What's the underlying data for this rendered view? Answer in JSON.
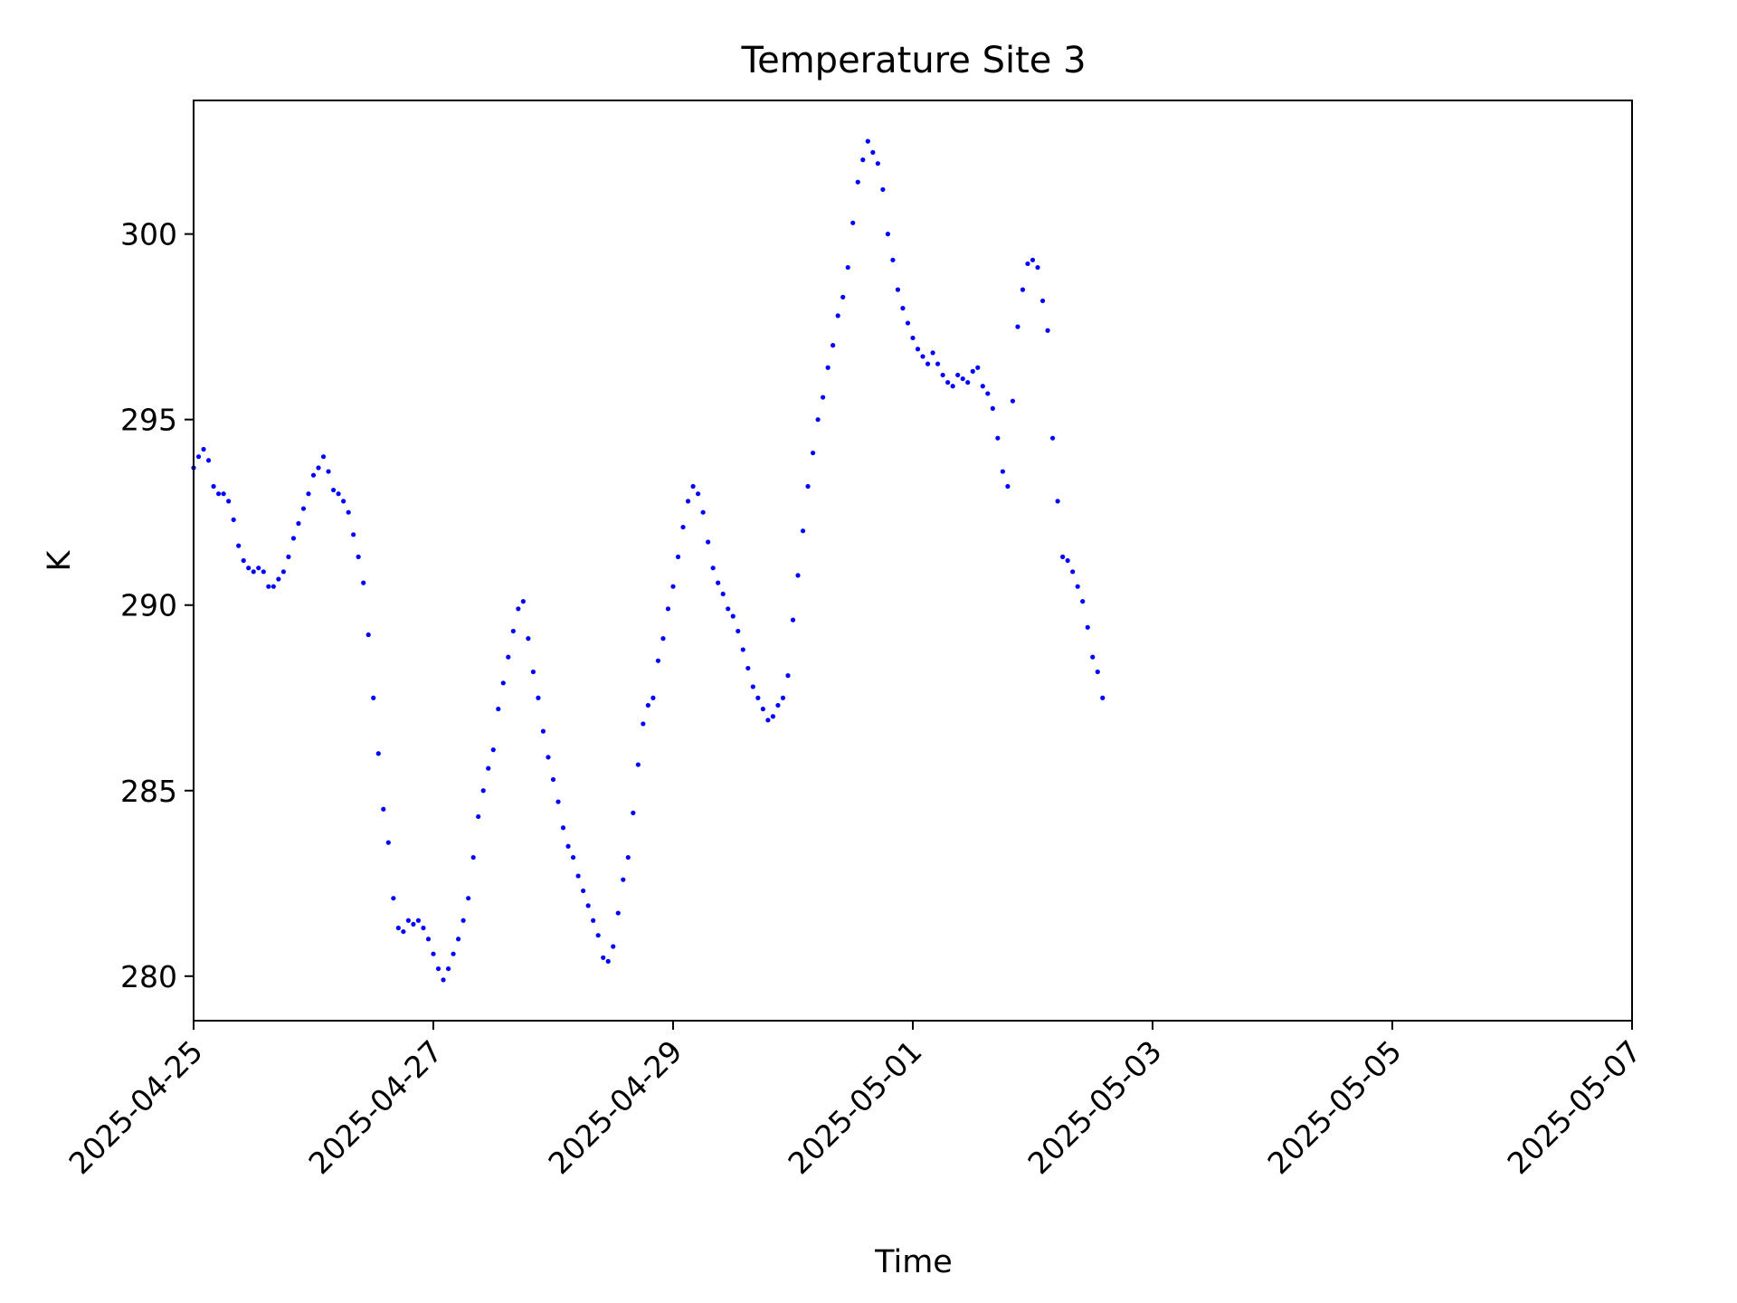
{
  "chart_data": {
    "type": "scatter",
    "title": "Temperature Site 3",
    "xlabel": "Time",
    "ylabel": "K",
    "x_ticks": [
      "2025-04-25",
      "2025-04-27",
      "2025-04-29",
      "2025-05-01",
      "2025-05-03",
      "2025-05-05",
      "2025-05-07"
    ],
    "y_ticks": [
      280,
      285,
      290,
      295,
      300
    ],
    "xlim": [
      "2025-04-25 00:00",
      "2025-05-07 00:00"
    ],
    "ylim": [
      278.8,
      303.6
    ],
    "grid": false,
    "legend": "none",
    "marker_color": "#0000ff",
    "series": [
      {
        "x": [
          "2025-04-25 00:00",
          "2025-04-25 01:00",
          "2025-04-25 02:00",
          "2025-04-25 03:00",
          "2025-04-25 04:00",
          "2025-04-25 05:00",
          "2025-04-25 06:00",
          "2025-04-25 07:00",
          "2025-04-25 08:00",
          "2025-04-25 09:00",
          "2025-04-25 10:00",
          "2025-04-25 11:00",
          "2025-04-25 12:00",
          "2025-04-25 13:00",
          "2025-04-25 14:00",
          "2025-04-25 15:00",
          "2025-04-25 16:00",
          "2025-04-25 17:00",
          "2025-04-25 18:00",
          "2025-04-25 19:00",
          "2025-04-25 20:00",
          "2025-04-25 21:00",
          "2025-04-25 22:00",
          "2025-04-25 23:00",
          "2025-04-26 00:00",
          "2025-04-26 01:00",
          "2025-04-26 02:00",
          "2025-04-26 03:00",
          "2025-04-26 04:00",
          "2025-04-26 05:00",
          "2025-04-26 06:00",
          "2025-04-26 07:00",
          "2025-04-26 08:00",
          "2025-04-26 09:00",
          "2025-04-26 10:00",
          "2025-04-26 11:00",
          "2025-04-26 12:00",
          "2025-04-26 13:00",
          "2025-04-26 14:00",
          "2025-04-26 15:00",
          "2025-04-26 16:00",
          "2025-04-26 17:00",
          "2025-04-26 18:00",
          "2025-04-26 19:00",
          "2025-04-26 20:00",
          "2025-04-26 21:00",
          "2025-04-26 22:00",
          "2025-04-26 23:00",
          "2025-04-27 00:00",
          "2025-04-27 01:00",
          "2025-04-27 02:00",
          "2025-04-27 03:00",
          "2025-04-27 04:00",
          "2025-04-27 05:00",
          "2025-04-27 06:00",
          "2025-04-27 07:00",
          "2025-04-27 08:00",
          "2025-04-27 09:00",
          "2025-04-27 10:00",
          "2025-04-27 11:00",
          "2025-04-27 12:00",
          "2025-04-27 13:00",
          "2025-04-27 14:00",
          "2025-04-27 15:00",
          "2025-04-27 16:00",
          "2025-04-27 17:00",
          "2025-04-27 18:00",
          "2025-04-27 19:00",
          "2025-04-27 20:00",
          "2025-04-27 21:00",
          "2025-04-27 22:00",
          "2025-04-27 23:00",
          "2025-04-28 00:00",
          "2025-04-28 01:00",
          "2025-04-28 02:00",
          "2025-04-28 03:00",
          "2025-04-28 04:00",
          "2025-04-28 05:00",
          "2025-04-28 06:00",
          "2025-04-28 07:00",
          "2025-04-28 08:00",
          "2025-04-28 09:00",
          "2025-04-28 10:00",
          "2025-04-28 11:00",
          "2025-04-28 12:00",
          "2025-04-28 13:00",
          "2025-04-28 14:00",
          "2025-04-28 15:00",
          "2025-04-28 16:00",
          "2025-04-28 17:00",
          "2025-04-28 18:00",
          "2025-04-28 19:00",
          "2025-04-28 20:00",
          "2025-04-28 21:00",
          "2025-04-28 22:00",
          "2025-04-28 23:00",
          "2025-04-29 00:00",
          "2025-04-29 01:00",
          "2025-04-29 02:00",
          "2025-04-29 03:00",
          "2025-04-29 04:00",
          "2025-04-29 05:00",
          "2025-04-29 06:00",
          "2025-04-29 07:00",
          "2025-04-29 08:00",
          "2025-04-29 09:00",
          "2025-04-29 10:00",
          "2025-04-29 11:00",
          "2025-04-29 12:00",
          "2025-04-29 13:00",
          "2025-04-29 14:00",
          "2025-04-29 15:00",
          "2025-04-29 16:00",
          "2025-04-29 17:00",
          "2025-04-29 18:00",
          "2025-04-29 19:00",
          "2025-04-29 20:00",
          "2025-04-29 21:00",
          "2025-04-29 22:00",
          "2025-04-29 23:00",
          "2025-04-30 00:00",
          "2025-04-30 01:00",
          "2025-04-30 02:00",
          "2025-04-30 03:00",
          "2025-04-30 04:00",
          "2025-04-30 05:00",
          "2025-04-30 06:00",
          "2025-04-30 07:00",
          "2025-04-30 08:00",
          "2025-04-30 09:00",
          "2025-04-30 10:00",
          "2025-04-30 11:00",
          "2025-04-30 12:00",
          "2025-04-30 13:00",
          "2025-04-30 14:00",
          "2025-04-30 15:00",
          "2025-04-30 16:00",
          "2025-04-30 17:00",
          "2025-04-30 18:00",
          "2025-04-30 19:00",
          "2025-04-30 20:00",
          "2025-04-30 21:00",
          "2025-04-30 22:00",
          "2025-04-30 23:00",
          "2025-05-01 00:00",
          "2025-05-01 01:00",
          "2025-05-01 02:00",
          "2025-05-01 03:00",
          "2025-05-01 04:00",
          "2025-05-01 05:00",
          "2025-05-01 06:00",
          "2025-05-01 07:00",
          "2025-05-01 08:00",
          "2025-05-01 09:00",
          "2025-05-01 10:00",
          "2025-05-01 11:00",
          "2025-05-01 12:00",
          "2025-05-01 13:00",
          "2025-05-01 14:00",
          "2025-05-01 15:00",
          "2025-05-01 16:00",
          "2025-05-01 17:00",
          "2025-05-01 18:00",
          "2025-05-01 19:00",
          "2025-05-01 20:00",
          "2025-05-01 21:00",
          "2025-05-01 22:00",
          "2025-05-01 23:00",
          "2025-05-02 00:00",
          "2025-05-02 01:00",
          "2025-05-02 02:00",
          "2025-05-02 03:00",
          "2025-05-02 04:00",
          "2025-05-02 05:00",
          "2025-05-02 06:00",
          "2025-05-02 07:00",
          "2025-05-02 08:00",
          "2025-05-02 09:00",
          "2025-05-02 10:00",
          "2025-05-02 11:00",
          "2025-05-02 12:00",
          "2025-05-02 13:00",
          "2025-05-02 14:00"
        ],
        "y": [
          293.7,
          294.0,
          294.2,
          293.9,
          293.2,
          293.0,
          293.0,
          292.8,
          292.3,
          291.6,
          291.2,
          291.0,
          290.9,
          291.0,
          290.9,
          290.5,
          290.5,
          290.7,
          290.9,
          291.3,
          291.8,
          292.2,
          292.6,
          293.0,
          293.5,
          293.7,
          294.0,
          293.6,
          293.1,
          293.0,
          292.8,
          292.5,
          291.9,
          291.3,
          290.6,
          289.2,
          287.5,
          286.0,
          284.5,
          283.6,
          282.1,
          281.3,
          281.2,
          281.5,
          281.4,
          281.5,
          281.3,
          281.0,
          280.6,
          280.2,
          279.9,
          280.2,
          280.6,
          281.0,
          281.5,
          282.1,
          283.2,
          284.3,
          285.0,
          285.6,
          286.1,
          287.2,
          287.9,
          288.6,
          289.3,
          289.9,
          290.1,
          289.1,
          288.2,
          287.5,
          286.6,
          285.9,
          285.3,
          284.7,
          284.0,
          283.5,
          283.2,
          282.7,
          282.3,
          281.9,
          281.5,
          281.1,
          280.5,
          280.4,
          280.8,
          281.7,
          282.6,
          283.2,
          284.4,
          285.7,
          286.8,
          287.3,
          287.5,
          288.5,
          289.1,
          289.9,
          290.5,
          291.3,
          292.1,
          292.8,
          293.2,
          293.0,
          292.5,
          291.7,
          291.0,
          290.6,
          290.3,
          289.9,
          289.7,
          289.3,
          288.8,
          288.3,
          287.8,
          287.5,
          287.2,
          286.9,
          287.0,
          287.3,
          287.5,
          288.1,
          289.6,
          290.8,
          292.0,
          293.2,
          294.1,
          295.0,
          295.6,
          296.4,
          297.0,
          297.8,
          298.3,
          299.1,
          300.3,
          301.4,
          302.0,
          302.5,
          302.2,
          301.9,
          301.2,
          300.0,
          299.3,
          298.5,
          298.0,
          297.6,
          297.2,
          296.9,
          296.7,
          296.5,
          296.8,
          296.5,
          296.2,
          296.0,
          295.9,
          296.2,
          296.1,
          296.0,
          296.3,
          296.4,
          295.9,
          295.7,
          295.3,
          294.5,
          293.6,
          293.2,
          295.5,
          297.5,
          298.5,
          299.2,
          299.3,
          299.1,
          298.2,
          297.4,
          294.5,
          292.8,
          291.3,
          291.2,
          290.9,
          290.5,
          290.1,
          289.4,
          288.6,
          288.2,
          287.5
        ]
      }
    ]
  }
}
